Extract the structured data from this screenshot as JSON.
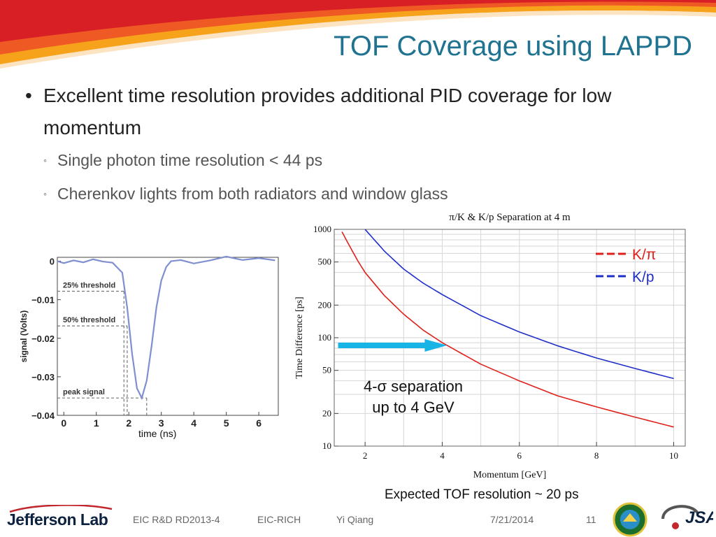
{
  "slide": {
    "title": "TOF Coverage using LAPPD",
    "bullet": "Excellent time resolution provides additional PID coverage for low momentum",
    "bullet_marker": "•",
    "sub_marker": "◦",
    "sub_bullets": [
      "Single photon time resolution < 44 ps",
      "Cherenkov lights from both radiators and window glass"
    ],
    "separation_note_line1": "4-σ separation",
    "separation_note_line2": "up to 4 GeV",
    "expected_resolution": "Expected TOF resolution ~ 20 ps",
    "time_axis_label": "time (ns)"
  },
  "footer": {
    "logo": "Jefferson Lab",
    "project": "EIC R&D RD2013-4",
    "detector": "EIC-RICH",
    "author": "Yi Qiang",
    "date": "7/21/2014",
    "page": "11",
    "right_logo": "JSA"
  },
  "colors": {
    "title": "#1f7391",
    "pi_k": "#e0201b",
    "k_p": "#1f2ec8",
    "arrow": "#18b4e6",
    "pulse": "#7f8fd0"
  },
  "chart_data": [
    {
      "type": "line",
      "title": "π/K & K/p Separation at 4 m",
      "xlabel": "Momentum [GeV]",
      "ylabel": "Time Difference [ps]",
      "xlim": [
        1.2,
        10.3
      ],
      "ylim": [
        10,
        1000
      ],
      "yscale": "log",
      "xticks": [
        2,
        4,
        6,
        8,
        10
      ],
      "yticks": [
        10,
        20,
        50,
        100,
        200,
        500,
        1000
      ],
      "grid": true,
      "legend_position": "top-right",
      "legend_entries": [
        "K/π",
        "K/p"
      ],
      "series": [
        {
          "name": "K/π",
          "color": "#e0201b",
          "x": [
            1.4,
            1.6,
            1.8,
            2.0,
            2.5,
            3.0,
            3.5,
            4.0,
            5.0,
            6.0,
            7.0,
            8.0,
            9.0,
            10.0
          ],
          "y": [
            950,
            700,
            520,
            400,
            245,
            165,
            118,
            90,
            57,
            40,
            29,
            23,
            18.5,
            15
          ]
        },
        {
          "name": "K/p",
          "color": "#1f2ec8",
          "x": [
            2.0,
            2.5,
            3.0,
            3.5,
            4.0,
            5.0,
            6.0,
            7.0,
            8.0,
            9.0,
            10.0
          ],
          "y": [
            1000,
            630,
            430,
            320,
            250,
            160,
            113,
            84,
            65,
            52,
            42
          ]
        }
      ],
      "annotations": [
        {
          "type": "arrow",
          "at_y": 85,
          "from_x": 1.3,
          "to_x": 3.8,
          "color": "#18b4e6"
        }
      ]
    },
    {
      "type": "line",
      "title": "",
      "xlabel": "time (ns)",
      "ylabel": "signal (Volts)",
      "xlim": [
        -0.2,
        6.6
      ],
      "ylim": [
        -0.04,
        0.001
      ],
      "xticks": [
        0,
        1,
        2,
        3,
        4,
        5,
        6
      ],
      "yticks": [
        0,
        -0.01,
        -0.02,
        -0.03,
        -0.04
      ],
      "ytick_labels": [
        "0",
        "−0.01",
        "−0.02",
        "−0.03",
        "−0.04"
      ],
      "grid": false,
      "series": [
        {
          "name": "",
          "color": "#7f8fd0",
          "x": [
            -0.2,
            0,
            0.3,
            0.6,
            0.9,
            1.2,
            1.5,
            1.8,
            1.95,
            2.1,
            2.25,
            2.4,
            2.55,
            2.7,
            2.85,
            3.0,
            3.15,
            3.3,
            3.6,
            4.0,
            4.5,
            5.0,
            5.5,
            6.0,
            6.5
          ],
          "y": [
            0,
            -0.0005,
            0.0002,
            -0.0003,
            0.0005,
            -0.0001,
            -0.0004,
            -0.003,
            -0.012,
            -0.024,
            -0.033,
            -0.0355,
            -0.031,
            -0.022,
            -0.012,
            -0.005,
            -0.0015,
            0,
            0.0003,
            -0.0006,
            0.0002,
            0.0012,
            0.0003,
            0.0008,
            0.0002
          ]
        }
      ],
      "annotations": [
        {
          "label": "25% threshold",
          "y": -0.0078,
          "x": 1.85
        },
        {
          "label": "50% threshold",
          "y": -0.0168,
          "x": 1.95
        },
        {
          "label": "peak signal",
          "y": -0.0355,
          "x": 2.55
        }
      ]
    }
  ]
}
